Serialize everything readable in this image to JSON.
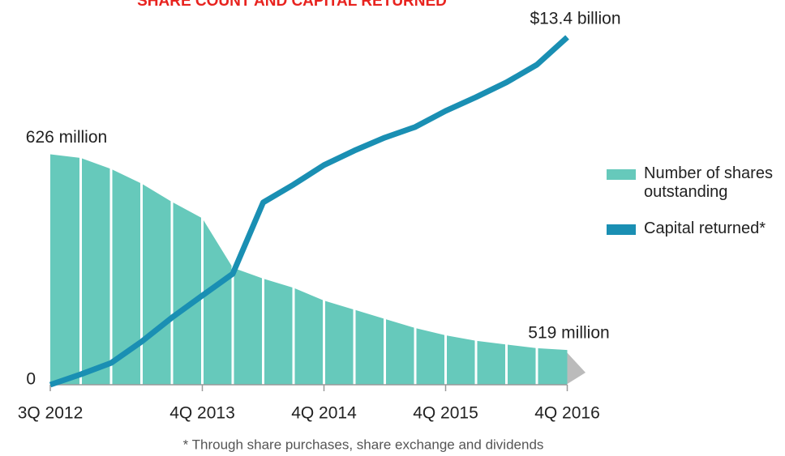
{
  "chart_data": {
    "type": "bar-line",
    "title": "SHARE COUNT AND CAPITAL RETURNED",
    "footnote": "* Through share purchases, share exchange and dividends",
    "categories": [
      "3Q 2012",
      null,
      null,
      null,
      null,
      "4Q 2013",
      null,
      null,
      null,
      "4Q 2014",
      null,
      null,
      null,
      "4Q 2015",
      null,
      null,
      null,
      "4Q 2016"
    ],
    "series": [
      {
        "name": "Number of shares outstanding",
        "color": "#66c9bb",
        "axis": "y",
        "values": [
          626,
          624,
          618,
          610,
          600,
          591,
          564,
          558,
          553,
          546,
          541,
          536,
          531,
          527,
          524,
          522,
          520,
          519
        ],
        "value_labels": [
          "626 million",
          null,
          null,
          null,
          null,
          null,
          null,
          null,
          null,
          null,
          null,
          null,
          null,
          null,
          null,
          null,
          null,
          "519 million"
        ]
      },
      {
        "name": "Capital returned*",
        "color": "#1a8fb3",
        "axis": "y2",
        "values": [
          0,
          0.4,
          0.84,
          1.66,
          2.59,
          3.44,
          4.28,
          7.03,
          7.72,
          8.47,
          9.03,
          9.53,
          9.94,
          10.56,
          11.09,
          11.66,
          12.34,
          13.4
        ],
        "value_labels": [
          null,
          null,
          null,
          null,
          null,
          null,
          null,
          null,
          null,
          null,
          null,
          null,
          null,
          null,
          null,
          null,
          null,
          "$13.4 billion"
        ]
      }
    ],
    "ylim": [
      500,
      690
    ],
    "y2lim": [
      0,
      13.4
    ],
    "y2ticks": [
      0
    ]
  }
}
